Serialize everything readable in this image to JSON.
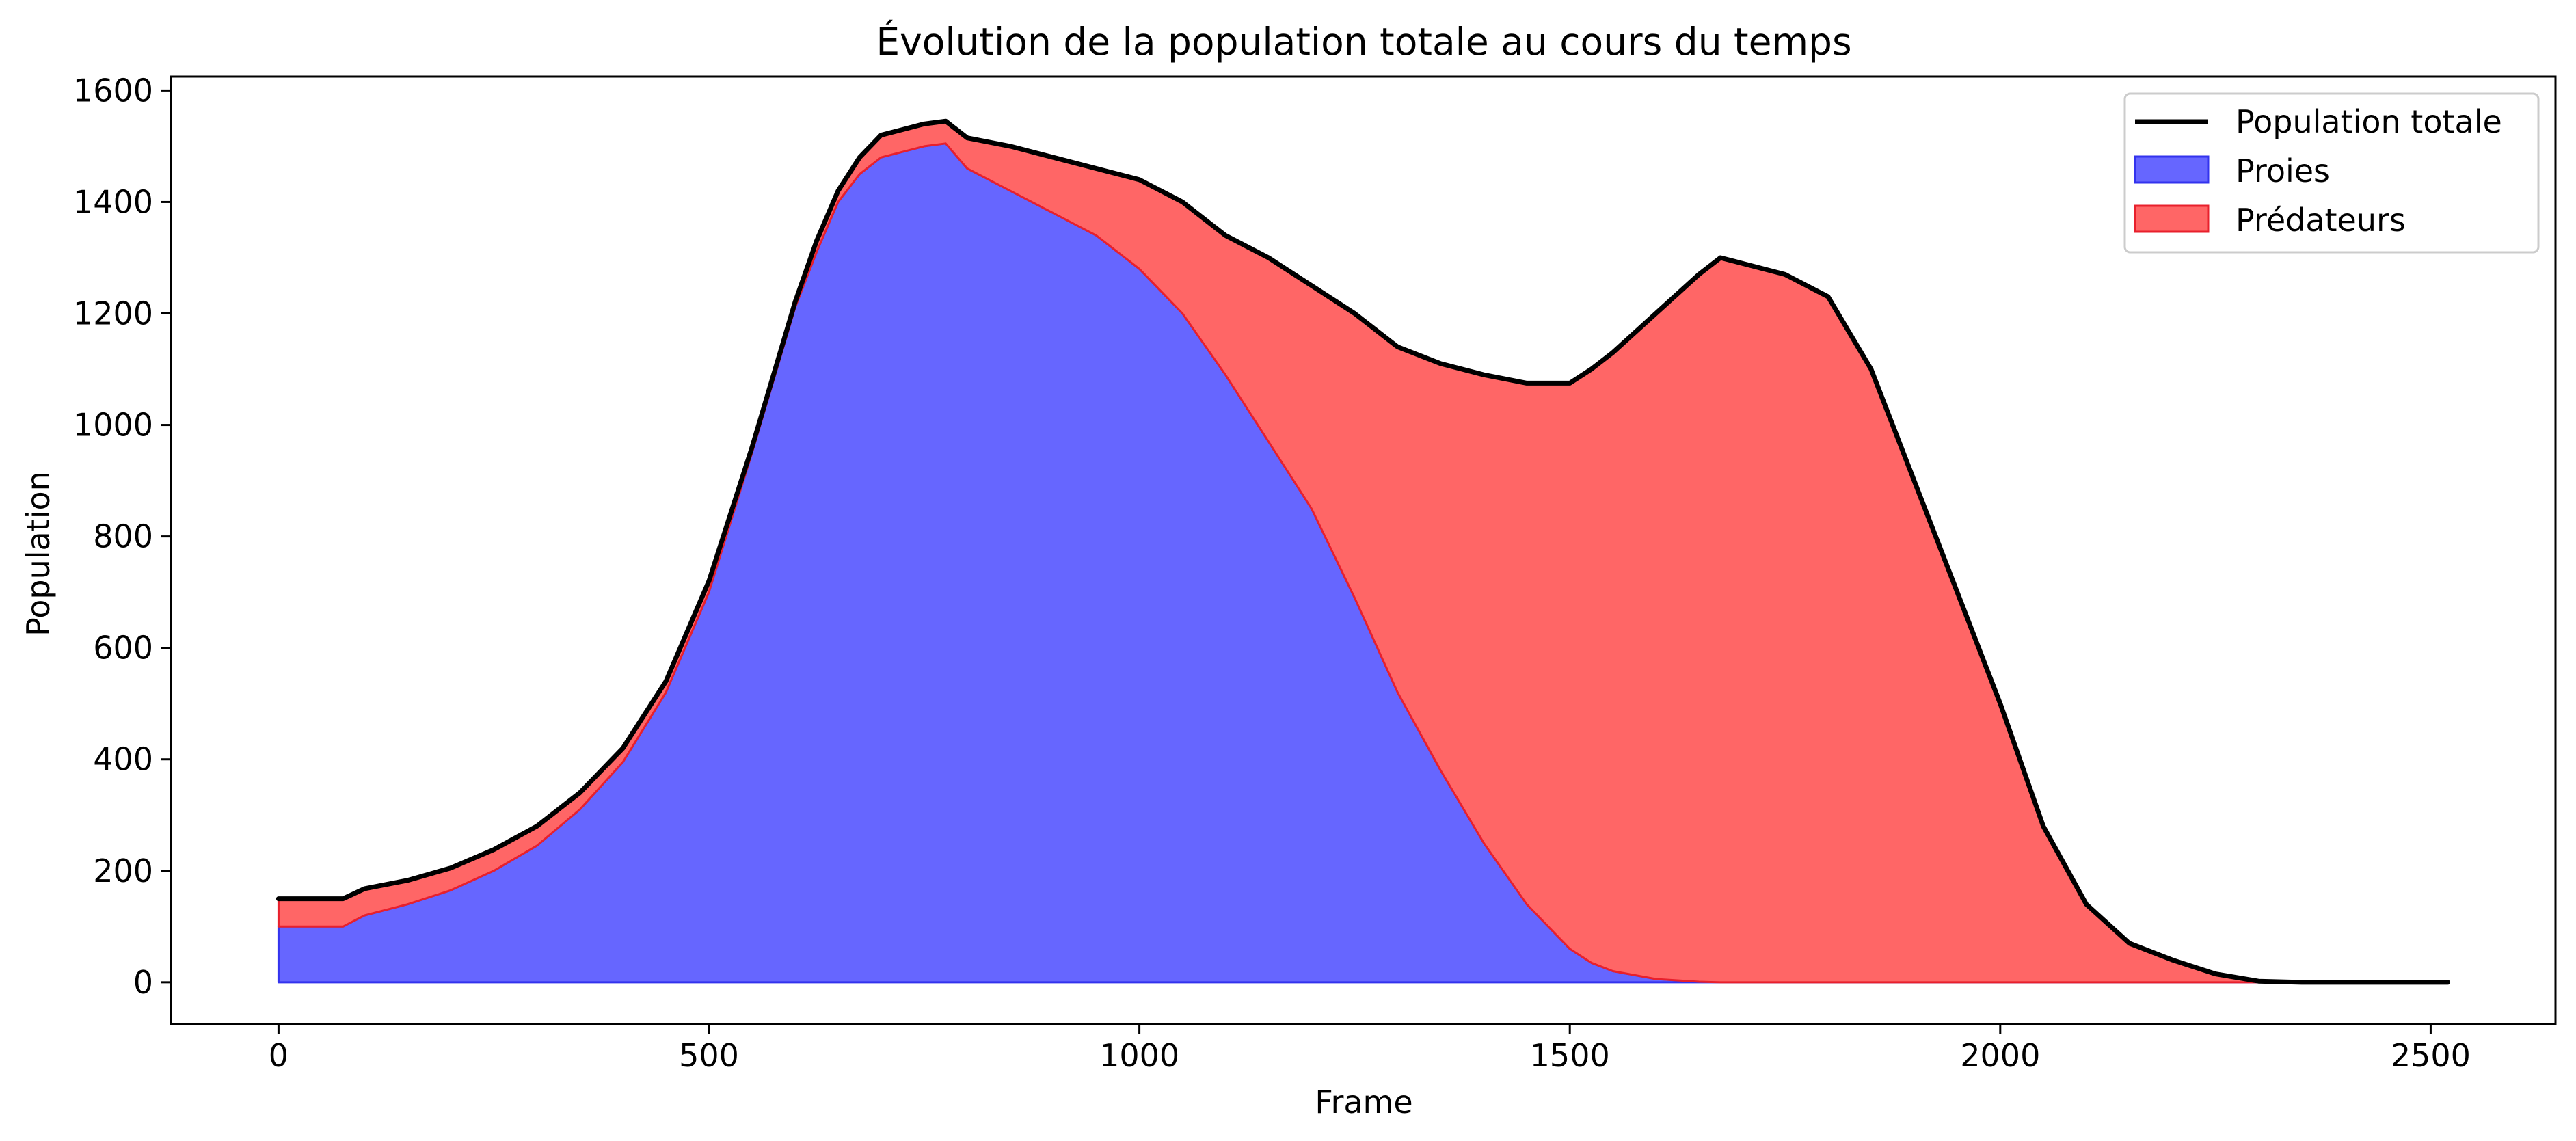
{
  "chart_data": {
    "type": "area",
    "title": "Évolution de la population totale au cours du temps",
    "xlabel": "Frame",
    "ylabel": "Population",
    "xlim": [
      -125,
      2645
    ],
    "ylim": [
      -75,
      1625
    ],
    "xticks": [
      0,
      500,
      1000,
      1500,
      2000,
      2500
    ],
    "yticks": [
      0,
      200,
      400,
      600,
      800,
      1000,
      1200,
      1400,
      1600
    ],
    "grid": false,
    "legend_position": "upper right",
    "stacked": true,
    "colors": {
      "total": "#000000",
      "prey": "#6666ff",
      "prey_edge": "#3333ee",
      "predator": "#ff6666",
      "predator_edge": "#e8202c"
    },
    "series": [
      {
        "name": "Population totale",
        "kind": "line",
        "x": [
          0,
          75,
          100,
          150,
          200,
          250,
          300,
          350,
          400,
          450,
          500,
          550,
          600,
          625,
          650,
          675,
          700,
          725,
          750,
          775,
          800,
          850,
          900,
          950,
          1000,
          1050,
          1100,
          1150,
          1200,
          1250,
          1300,
          1350,
          1400,
          1450,
          1500,
          1525,
          1550,
          1600,
          1650,
          1675,
          1700,
          1750,
          1800,
          1850,
          1900,
          1950,
          2000,
          2050,
          2100,
          2150,
          2200,
          2250,
          2300,
          2350,
          2400,
          2450,
          2520
        ],
        "y": [
          150,
          150,
          168,
          183,
          205,
          238,
          280,
          340,
          420,
          540,
          720,
          960,
          1220,
          1330,
          1420,
          1480,
          1520,
          1530,
          1540,
          1545,
          1515,
          1500,
          1480,
          1460,
          1440,
          1400,
          1340,
          1300,
          1250,
          1200,
          1140,
          1110,
          1090,
          1075,
          1075,
          1100,
          1130,
          1200,
          1270,
          1300,
          1290,
          1270,
          1230,
          1100,
          900,
          700,
          500,
          280,
          140,
          70,
          40,
          15,
          2,
          0,
          0,
          0,
          0
        ]
      },
      {
        "name": "Proies",
        "kind": "area",
        "x": [
          0,
          75,
          100,
          150,
          200,
          250,
          300,
          350,
          400,
          450,
          500,
          550,
          600,
          625,
          650,
          675,
          700,
          725,
          750,
          775,
          800,
          850,
          900,
          950,
          1000,
          1050,
          1100,
          1150,
          1200,
          1250,
          1300,
          1350,
          1400,
          1450,
          1500,
          1525,
          1550,
          1600,
          1650,
          1675,
          1700,
          1750,
          1800,
          1850,
          1900,
          1950,
          2000,
          2050,
          2100,
          2150,
          2200,
          2250,
          2300,
          2350,
          2400,
          2450,
          2520
        ],
        "y": [
          100,
          100,
          120,
          140,
          165,
          200,
          245,
          310,
          395,
          520,
          700,
          950,
          1210,
          1310,
          1400,
          1450,
          1480,
          1490,
          1500,
          1505,
          1460,
          1420,
          1380,
          1340,
          1280,
          1200,
          1090,
          970,
          850,
          690,
          520,
          380,
          250,
          140,
          60,
          35,
          20,
          6,
          1,
          0,
          0,
          0,
          0,
          0,
          0,
          0,
          0,
          0,
          0,
          0,
          0,
          0,
          0,
          0,
          0,
          0,
          0
        ]
      },
      {
        "name": "Prédateurs",
        "kind": "area",
        "x": [
          0,
          75,
          100,
          150,
          200,
          250,
          300,
          350,
          400,
          450,
          500,
          550,
          600,
          625,
          650,
          675,
          700,
          725,
          750,
          775,
          800,
          850,
          900,
          950,
          1000,
          1050,
          1100,
          1150,
          1200,
          1250,
          1300,
          1350,
          1400,
          1450,
          1500,
          1525,
          1550,
          1600,
          1650,
          1675,
          1700,
          1750,
          1800,
          1850,
          1900,
          1950,
          2000,
          2050,
          2100,
          2150,
          2200,
          2250,
          2300,
          2350,
          2400,
          2450,
          2520
        ],
        "y": [
          50,
          50,
          48,
          43,
          40,
          38,
          35,
          30,
          25,
          20,
          20,
          10,
          10,
          20,
          20,
          30,
          40,
          40,
          40,
          40,
          55,
          80,
          100,
          120,
          160,
          200,
          250,
          330,
          400,
          510,
          620,
          730,
          840,
          935,
          1015,
          1065,
          1110,
          1194,
          1269,
          1300,
          1290,
          1270,
          1230,
          1100,
          900,
          700,
          500,
          280,
          140,
          70,
          40,
          15,
          2,
          0,
          0,
          0,
          0
        ]
      }
    ]
  }
}
